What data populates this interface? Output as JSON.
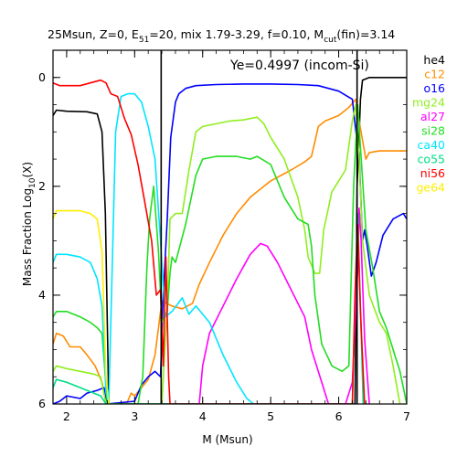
{
  "chart_data": {
    "type": "line",
    "title_parts": [
      "25Msun, Z=0, E",
      "51",
      "=20, mix 1.79-3.29, f=0.10, M",
      "cut",
      "(fin)=3.14"
    ],
    "xlabel": "M (Msun)",
    "ylabel_parts": [
      "Mass Fraction Log",
      "10",
      "(X)"
    ],
    "xlim": [
      1.8,
      7.0
    ],
    "ylim": [
      -6.0,
      0.5
    ],
    "x_ticks": [
      2,
      3,
      4,
      5,
      6,
      7
    ],
    "y_ticks": [
      0,
      -2,
      -4,
      -6
    ],
    "y_tick_labels": [
      "0",
      "2",
      "4",
      "6"
    ],
    "grid": false,
    "legend_position": "right-outside",
    "annotation": "Ye=0.4997 (incom-Si)",
    "vertical_lines": [
      3.39,
      6.27
    ],
    "series": [
      {
        "name": "he4",
        "color": "#000000",
        "points": [
          [
            1.8,
            -0.7
          ],
          [
            1.85,
            -0.6
          ],
          [
            2.0,
            -0.62
          ],
          [
            2.3,
            -0.63
          ],
          [
            2.45,
            -0.67
          ],
          [
            2.52,
            -1.0
          ],
          [
            2.57,
            -2.5
          ],
          [
            2.6,
            -4.6
          ],
          [
            2.62,
            -6.0
          ],
          [
            6.24,
            -6.0
          ],
          [
            6.27,
            -2.0
          ],
          [
            6.32,
            -0.4
          ],
          [
            6.35,
            -0.05
          ],
          [
            6.45,
            0.0
          ],
          [
            7.0,
            0.0
          ]
        ]
      },
      {
        "name": "c12",
        "color": "#ff8c00",
        "points": [
          [
            1.8,
            -4.9
          ],
          [
            1.85,
            -4.7
          ],
          [
            1.95,
            -4.75
          ],
          [
            2.05,
            -4.95
          ],
          [
            2.2,
            -4.95
          ],
          [
            2.3,
            -5.1
          ],
          [
            2.42,
            -5.3
          ],
          [
            2.52,
            -5.6
          ],
          [
            2.58,
            -6.0
          ],
          [
            2.88,
            -6.0
          ],
          [
            2.95,
            -5.8
          ],
          [
            3.0,
            -5.85
          ],
          [
            3.1,
            -5.7
          ],
          [
            3.2,
            -5.55
          ],
          [
            3.3,
            -5.1
          ],
          [
            3.35,
            -4.6
          ],
          [
            3.4,
            -4.1
          ],
          [
            3.55,
            -4.2
          ],
          [
            3.7,
            -4.25
          ],
          [
            3.85,
            -4.15
          ],
          [
            3.95,
            -3.8
          ],
          [
            4.1,
            -3.4
          ],
          [
            4.3,
            -2.9
          ],
          [
            4.5,
            -2.5
          ],
          [
            4.7,
            -2.2
          ],
          [
            5.0,
            -1.9
          ],
          [
            5.3,
            -1.7
          ],
          [
            5.5,
            -1.55
          ],
          [
            5.6,
            -1.45
          ],
          [
            5.7,
            -0.9
          ],
          [
            5.8,
            -0.8
          ],
          [
            6.0,
            -0.7
          ],
          [
            6.15,
            -0.55
          ],
          [
            6.25,
            -0.4
          ],
          [
            6.3,
            -0.8
          ],
          [
            6.4,
            -1.5
          ],
          [
            6.45,
            -1.38
          ],
          [
            6.6,
            -1.35
          ],
          [
            7.0,
            -1.35
          ]
        ]
      },
      {
        "name": "o16",
        "color": "#0000ff",
        "points": [
          [
            1.8,
            -6.0
          ],
          [
            1.9,
            -5.95
          ],
          [
            2.0,
            -5.85
          ],
          [
            2.2,
            -5.9
          ],
          [
            2.3,
            -5.8
          ],
          [
            2.45,
            -5.75
          ],
          [
            2.55,
            -5.7
          ],
          [
            2.6,
            -6.0
          ],
          [
            3.0,
            -5.95
          ],
          [
            3.1,
            -5.65
          ],
          [
            3.2,
            -5.5
          ],
          [
            3.3,
            -5.4
          ],
          [
            3.38,
            -5.5
          ],
          [
            3.42,
            -4.0
          ],
          [
            3.48,
            -2.6
          ],
          [
            3.53,
            -1.1
          ],
          [
            3.6,
            -0.45
          ],
          [
            3.65,
            -0.3
          ],
          [
            3.75,
            -0.2
          ],
          [
            3.9,
            -0.15
          ],
          [
            4.2,
            -0.13
          ],
          [
            4.6,
            -0.12
          ],
          [
            5.0,
            -0.12
          ],
          [
            5.4,
            -0.13
          ],
          [
            5.7,
            -0.15
          ],
          [
            6.0,
            -0.25
          ],
          [
            6.2,
            -0.4
          ],
          [
            6.27,
            -1.2
          ],
          [
            6.3,
            -1.4
          ],
          [
            6.35,
            -3.0
          ],
          [
            6.38,
            -2.8
          ],
          [
            6.42,
            -3.1
          ],
          [
            6.48,
            -3.65
          ],
          [
            6.55,
            -3.4
          ],
          [
            6.65,
            -2.9
          ],
          [
            6.8,
            -2.6
          ],
          [
            6.95,
            -2.5
          ],
          [
            7.0,
            -2.6
          ]
        ]
      },
      {
        "name": "mg24",
        "color": "#90ee20",
        "points": [
          [
            1.8,
            -5.4
          ],
          [
            1.85,
            -5.3
          ],
          [
            2.0,
            -5.35
          ],
          [
            2.2,
            -5.4
          ],
          [
            2.4,
            -5.45
          ],
          [
            2.5,
            -5.5
          ],
          [
            2.58,
            -6.0
          ],
          [
            3.4,
            -6.0
          ],
          [
            3.48,
            -4.2
          ],
          [
            3.52,
            -2.6
          ],
          [
            3.6,
            -2.5
          ],
          [
            3.7,
            -2.5
          ],
          [
            3.8,
            -1.7
          ],
          [
            3.9,
            -1.0
          ],
          [
            4.0,
            -0.9
          ],
          [
            4.2,
            -0.85
          ],
          [
            4.4,
            -0.8
          ],
          [
            4.6,
            -0.78
          ],
          [
            4.8,
            -0.73
          ],
          [
            4.9,
            -0.85
          ],
          [
            5.0,
            -1.1
          ],
          [
            5.2,
            -1.5
          ],
          [
            5.4,
            -2.2
          ],
          [
            5.5,
            -2.8
          ],
          [
            5.55,
            -3.3
          ],
          [
            5.65,
            -3.6
          ],
          [
            5.72,
            -3.6
          ],
          [
            5.78,
            -2.8
          ],
          [
            5.9,
            -2.1
          ],
          [
            6.0,
            -1.9
          ],
          [
            6.1,
            -1.7
          ],
          [
            6.2,
            -0.8
          ],
          [
            6.25,
            -0.5
          ],
          [
            6.3,
            -1.5
          ],
          [
            6.35,
            -3.0
          ],
          [
            6.45,
            -4.0
          ],
          [
            6.6,
            -4.5
          ],
          [
            6.7,
            -4.7
          ],
          [
            6.8,
            -5.3
          ],
          [
            6.9,
            -6.0
          ]
        ]
      },
      {
        "name": "al27",
        "color": "#ff00ff",
        "points": [
          [
            3.95,
            -6.0
          ],
          [
            4.0,
            -5.3
          ],
          [
            4.1,
            -4.7
          ],
          [
            4.3,
            -4.2
          ],
          [
            4.5,
            -3.7
          ],
          [
            4.7,
            -3.25
          ],
          [
            4.85,
            -3.05
          ],
          [
            4.95,
            -3.1
          ],
          [
            5.1,
            -3.4
          ],
          [
            5.3,
            -3.9
          ],
          [
            5.5,
            -4.4
          ],
          [
            5.6,
            -5.0
          ],
          [
            5.75,
            -5.6
          ],
          [
            5.85,
            -6.0
          ],
          [
            6.1,
            -6.0
          ],
          [
            6.2,
            -5.6
          ],
          [
            6.28,
            -3.5
          ],
          [
            6.3,
            -2.4
          ],
          [
            6.33,
            -3.0
          ],
          [
            6.38,
            -4.8
          ],
          [
            6.45,
            -6.0
          ]
        ]
      },
      {
        "name": "si28",
        "color": "#22dd22",
        "points": [
          [
            1.8,
            -4.4
          ],
          [
            1.85,
            -4.3
          ],
          [
            2.0,
            -4.3
          ],
          [
            2.2,
            -4.4
          ],
          [
            2.35,
            -4.5
          ],
          [
            2.45,
            -4.6
          ],
          [
            2.52,
            -4.7
          ],
          [
            2.6,
            -6.0
          ],
          [
            3.05,
            -6.0
          ],
          [
            3.12,
            -5.5
          ],
          [
            3.18,
            -3.5
          ],
          [
            3.22,
            -2.6
          ],
          [
            3.28,
            -2.0
          ],
          [
            3.35,
            -3.2
          ],
          [
            3.4,
            -4.5
          ],
          [
            3.48,
            -4.3
          ],
          [
            3.52,
            -3.6
          ],
          [
            3.55,
            -3.3
          ],
          [
            3.6,
            -3.4
          ],
          [
            3.75,
            -2.7
          ],
          [
            3.9,
            -1.8
          ],
          [
            4.0,
            -1.5
          ],
          [
            4.2,
            -1.45
          ],
          [
            4.5,
            -1.45
          ],
          [
            4.7,
            -1.5
          ],
          [
            4.8,
            -1.45
          ],
          [
            5.0,
            -1.6
          ],
          [
            5.2,
            -2.2
          ],
          [
            5.4,
            -2.6
          ],
          [
            5.55,
            -2.7
          ],
          [
            5.6,
            -3.1
          ],
          [
            5.65,
            -4.0
          ],
          [
            5.75,
            -4.9
          ],
          [
            5.9,
            -5.3
          ],
          [
            6.05,
            -5.4
          ],
          [
            6.15,
            -5.3
          ],
          [
            6.22,
            -2.0
          ],
          [
            6.28,
            -0.5
          ],
          [
            6.32,
            -1.3
          ],
          [
            6.4,
            -2.8
          ],
          [
            6.5,
            -3.5
          ],
          [
            6.6,
            -4.3
          ],
          [
            6.7,
            -4.6
          ],
          [
            6.8,
            -5.0
          ],
          [
            6.9,
            -5.4
          ],
          [
            7.0,
            -6.0
          ]
        ]
      },
      {
        "name": "ca40",
        "color": "#00e5ff",
        "points": [
          [
            1.8,
            -3.4
          ],
          [
            1.85,
            -3.25
          ],
          [
            2.0,
            -3.25
          ],
          [
            2.2,
            -3.3
          ],
          [
            2.35,
            -3.4
          ],
          [
            2.45,
            -3.7
          ],
          [
            2.52,
            -4.2
          ],
          [
            2.58,
            -5.8
          ],
          [
            2.62,
            -6.0
          ],
          [
            2.68,
            -3.0
          ],
          [
            2.72,
            -1.0
          ],
          [
            2.8,
            -0.35
          ],
          [
            2.9,
            -0.3
          ],
          [
            3.0,
            -0.3
          ],
          [
            3.1,
            -0.45
          ],
          [
            3.2,
            -0.9
          ],
          [
            3.3,
            -1.5
          ],
          [
            3.38,
            -3.0
          ],
          [
            3.45,
            -4.4
          ],
          [
            3.55,
            -4.3
          ],
          [
            3.7,
            -4.05
          ],
          [
            3.8,
            -4.35
          ],
          [
            3.9,
            -4.2
          ],
          [
            4.1,
            -4.5
          ],
          [
            4.3,
            -5.1
          ],
          [
            4.5,
            -5.6
          ],
          [
            4.65,
            -5.9
          ],
          [
            4.75,
            -6.0
          ]
        ]
      },
      {
        "name": "co55",
        "color": "#00dd88",
        "points": [
          [
            1.8,
            -5.7
          ],
          [
            1.85,
            -5.55
          ],
          [
            2.0,
            -5.6
          ],
          [
            2.2,
            -5.7
          ],
          [
            2.4,
            -5.8
          ],
          [
            2.5,
            -5.85
          ],
          [
            2.58,
            -6.0
          ],
          [
            6.2,
            -6.0
          ],
          [
            6.25,
            -3.5
          ],
          [
            6.28,
            -2.5
          ],
          [
            6.31,
            -3.8
          ],
          [
            6.36,
            -6.0
          ]
        ]
      },
      {
        "name": "ni56",
        "color": "#ff0000",
        "points": [
          [
            1.8,
            -0.1
          ],
          [
            1.9,
            -0.15
          ],
          [
            2.0,
            -0.15
          ],
          [
            2.2,
            -0.15
          ],
          [
            2.35,
            -0.1
          ],
          [
            2.5,
            -0.05
          ],
          [
            2.58,
            -0.1
          ],
          [
            2.65,
            -0.3
          ],
          [
            2.75,
            -0.35
          ],
          [
            2.85,
            -0.75
          ],
          [
            2.95,
            -1.05
          ],
          [
            3.05,
            -1.6
          ],
          [
            3.15,
            -2.3
          ],
          [
            3.25,
            -3.0
          ],
          [
            3.32,
            -4.0
          ],
          [
            3.38,
            -3.9
          ],
          [
            3.42,
            -5.3
          ],
          [
            3.46,
            -3.3
          ],
          [
            3.5,
            -5.5
          ],
          [
            3.52,
            -6.0
          ],
          [
            6.2,
            -6.0
          ],
          [
            6.24,
            -4.0
          ],
          [
            6.28,
            -2.7
          ],
          [
            6.32,
            -4.3
          ],
          [
            6.38,
            -6.0
          ]
        ]
      },
      {
        "name": "ge64",
        "color": "#ffee00",
        "points": [
          [
            1.8,
            -2.6
          ],
          [
            1.85,
            -2.45
          ],
          [
            2.0,
            -2.45
          ],
          [
            2.2,
            -2.45
          ],
          [
            2.35,
            -2.5
          ],
          [
            2.45,
            -2.6
          ],
          [
            2.52,
            -3.2
          ],
          [
            2.58,
            -5.5
          ],
          [
            2.62,
            -6.0
          ]
        ]
      }
    ]
  }
}
